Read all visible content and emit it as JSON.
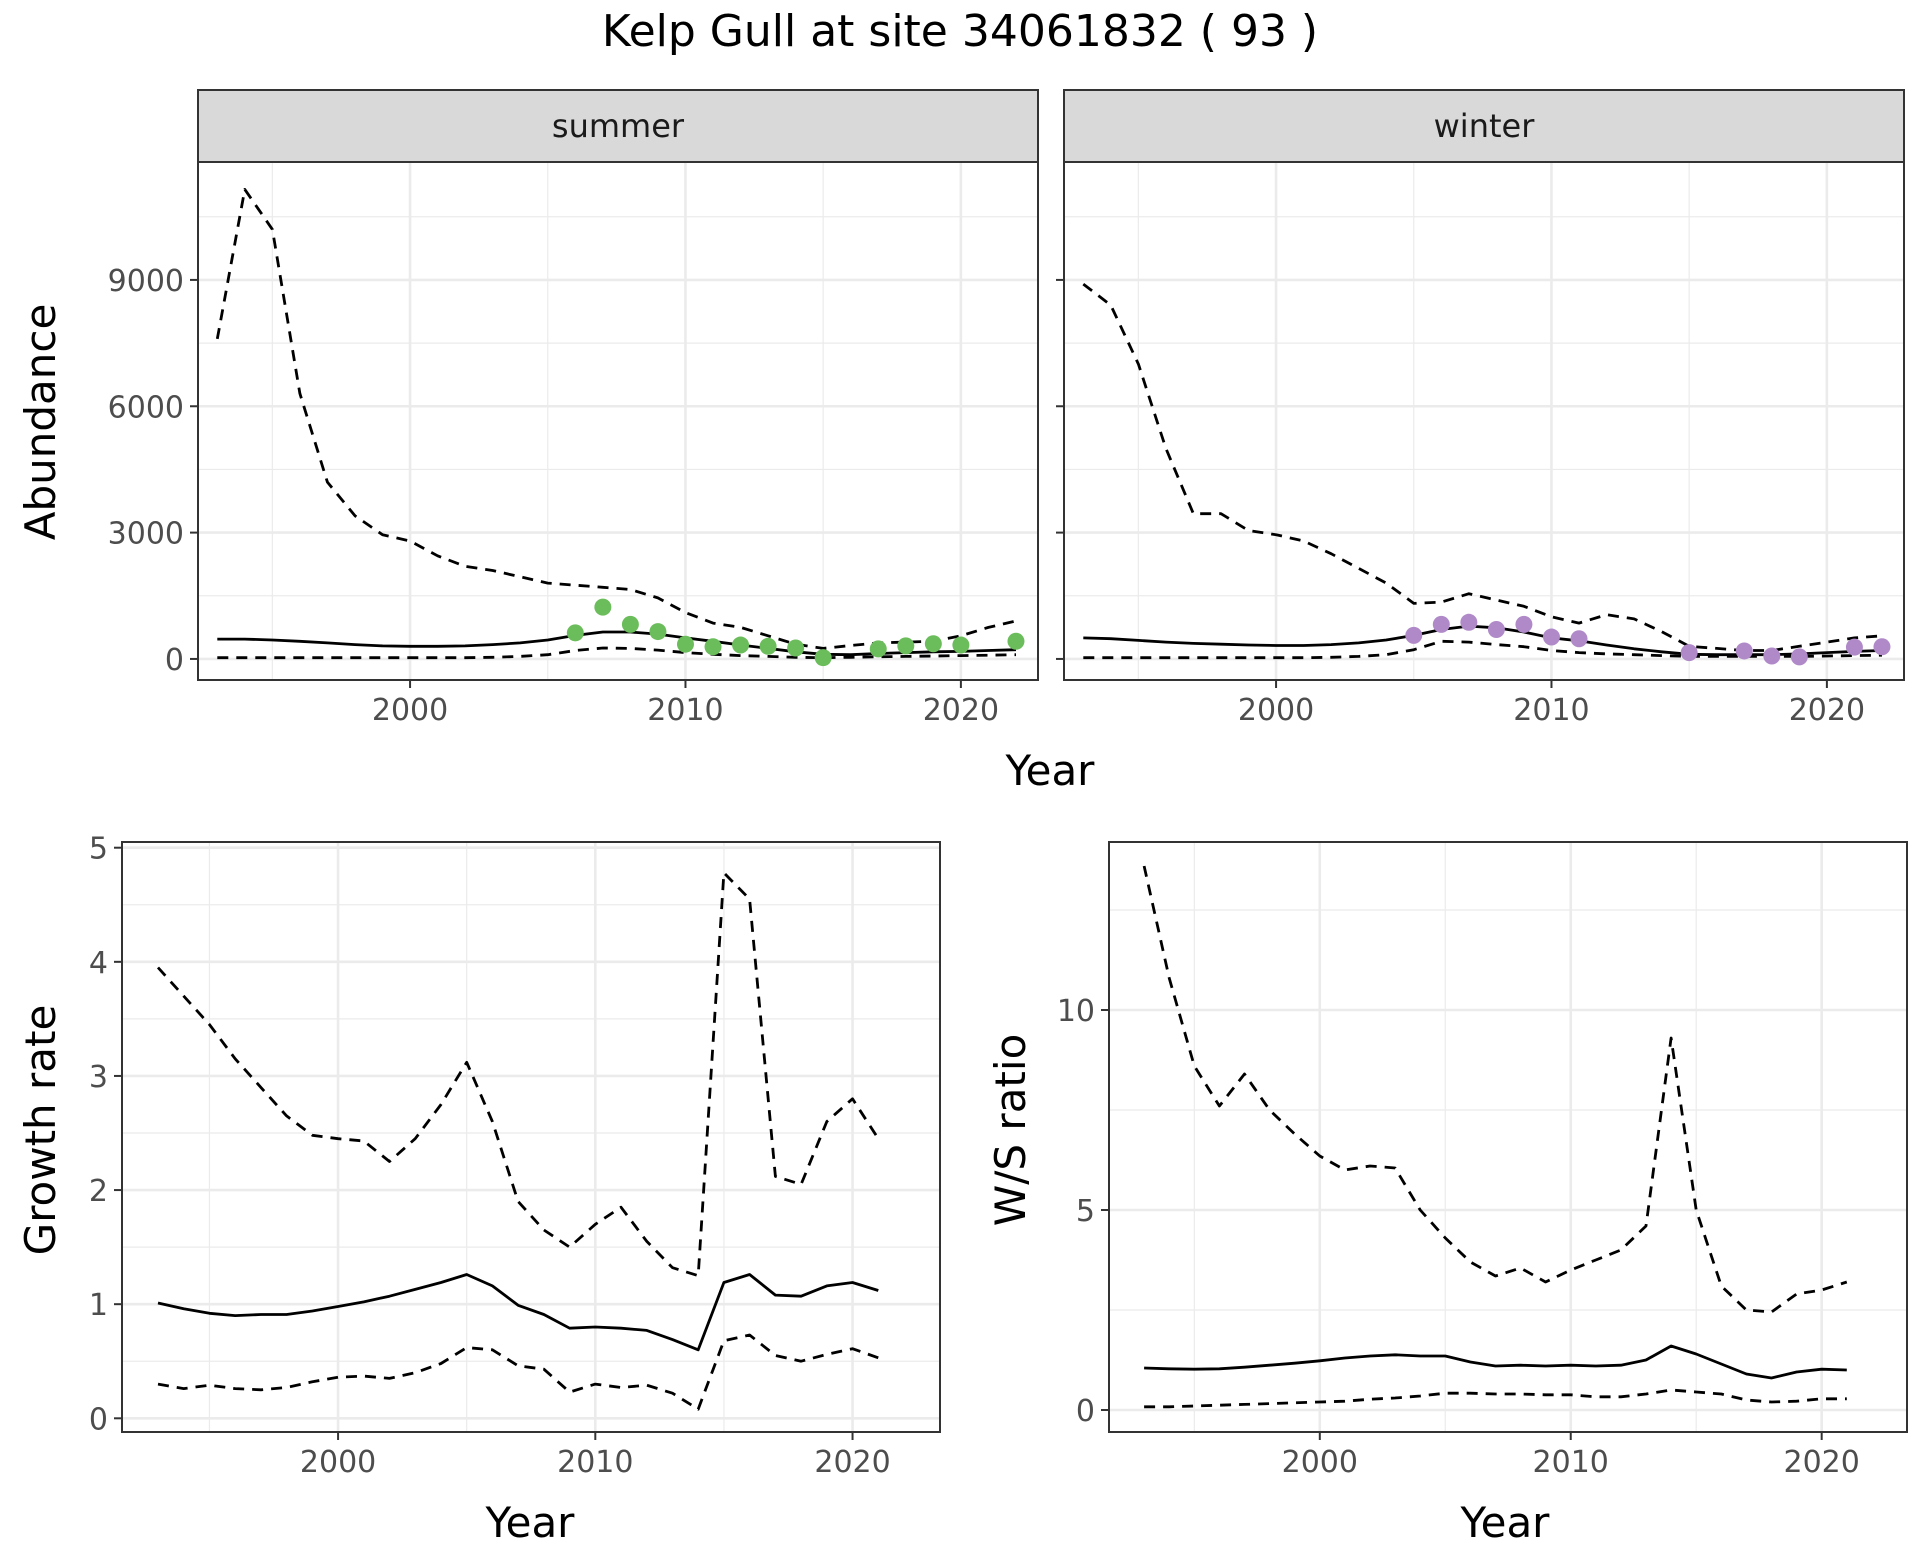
{
  "figure_title": "Kelp Gull at site 34061832 ( 93 )",
  "colors": {
    "summer_points": "#6bbd5b",
    "winter_points": "#b08ac8",
    "strip_bg": "#d9d9d9",
    "grid": "#ebebeb"
  },
  "chart_data": [
    {
      "type": "line",
      "id": "abundance-summer",
      "strip_label": "summer",
      "xlabel": "Year",
      "ylabel": "Abundance",
      "xlim": [
        1992.3,
        2022.8
      ],
      "ylim": [
        -500,
        11800
      ],
      "x_ticks": [
        2000,
        2010,
        2020
      ],
      "y_ticks": [
        0,
        3000,
        6000,
        9000
      ],
      "x_tick_labels": [
        "2000",
        "2010",
        "2020"
      ],
      "y_tick_labels": [
        "0",
        "3000",
        "6000",
        "9000"
      ],
      "series": [
        {
          "name": "upper",
          "style": "dashed",
          "x": [
            1993,
            1994,
            1995,
            1996,
            1997,
            1998,
            1999,
            2000,
            2001,
            2002,
            2003,
            2004,
            2005,
            2006,
            2007,
            2008,
            2009,
            2010,
            2011,
            2012,
            2013,
            2014,
            2015,
            2016,
            2017,
            2018,
            2019,
            2020,
            2021,
            2022
          ],
          "y": [
            7600,
            11150,
            10200,
            6300,
            4200,
            3400,
            2950,
            2800,
            2450,
            2200,
            2100,
            1950,
            1800,
            1750,
            1700,
            1650,
            1450,
            1100,
            850,
            750,
            550,
            350,
            250,
            320,
            380,
            400,
            420,
            550,
            750,
            900
          ]
        },
        {
          "name": "estimate",
          "style": "solid",
          "x": [
            1993,
            1994,
            1995,
            1996,
            1997,
            1998,
            1999,
            2000,
            2001,
            2002,
            2003,
            2004,
            2005,
            2006,
            2007,
            2008,
            2009,
            2010,
            2011,
            2012,
            2013,
            2014,
            2015,
            2016,
            2017,
            2018,
            2019,
            2020,
            2021,
            2022
          ],
          "y": [
            470,
            470,
            450,
            420,
            380,
            340,
            310,
            300,
            300,
            310,
            340,
            380,
            450,
            560,
            640,
            640,
            590,
            500,
            420,
            330,
            250,
            170,
            110,
            100,
            130,
            150,
            170,
            180,
            200,
            220
          ]
        },
        {
          "name": "lower",
          "style": "dashed",
          "x": [
            1993,
            1994,
            1995,
            1996,
            1997,
            1998,
            1999,
            2000,
            2001,
            2002,
            2003,
            2004,
            2005,
            2006,
            2007,
            2008,
            2009,
            2010,
            2011,
            2012,
            2013,
            2014,
            2015,
            2016,
            2017,
            2018,
            2019,
            2020,
            2021,
            2022
          ],
          "y": [
            30,
            30,
            30,
            30,
            30,
            30,
            30,
            30,
            30,
            30,
            40,
            60,
            100,
            200,
            260,
            250,
            210,
            150,
            110,
            80,
            60,
            40,
            30,
            40,
            50,
            60,
            70,
            80,
            90,
            100
          ]
        }
      ],
      "points": {
        "name": "observed",
        "x": [
          2006,
          2007,
          2008,
          2009,
          2010,
          2011,
          2012,
          2013,
          2014,
          2015,
          2017,
          2018,
          2019,
          2020,
          2022
        ],
        "y": [
          620,
          1230,
          820,
          650,
          350,
          290,
          330,
          300,
          260,
          30,
          240,
          310,
          360,
          330,
          420
        ]
      }
    },
    {
      "type": "line",
      "id": "abundance-winter",
      "strip_label": "winter",
      "xlabel": "Year",
      "ylabel": "Abundance",
      "xlim": [
        1992.3,
        2022.8
      ],
      "ylim": [
        -500,
        11800
      ],
      "x_ticks": [
        2000,
        2010,
        2020
      ],
      "y_ticks": [
        0,
        3000,
        6000,
        9000
      ],
      "x_tick_labels": [
        "2000",
        "2010",
        "2020"
      ],
      "y_tick_labels": [],
      "series": [
        {
          "name": "upper",
          "style": "dashed",
          "x": [
            1993,
            1994,
            1995,
            1996,
            1997,
            1998,
            1999,
            2000,
            2001,
            2002,
            2003,
            2004,
            2005,
            2006,
            2007,
            2008,
            2009,
            2010,
            2011,
            2012,
            2013,
            2014,
            2015,
            2016,
            2017,
            2018,
            2019,
            2020,
            2021,
            2022
          ],
          "y": [
            8900,
            8400,
            7000,
            5000,
            3450,
            3450,
            3050,
            2950,
            2800,
            2500,
            2150,
            1800,
            1320,
            1350,
            1550,
            1400,
            1250,
            1000,
            850,
            1050,
            950,
            650,
            300,
            250,
            200,
            200,
            300,
            400,
            500,
            550
          ]
        },
        {
          "name": "estimate",
          "style": "solid",
          "x": [
            1993,
            1994,
            1995,
            1996,
            1997,
            1998,
            1999,
            2000,
            2001,
            2002,
            2003,
            2004,
            2005,
            2006,
            2007,
            2008,
            2009,
            2010,
            2011,
            2012,
            2013,
            2014,
            2015,
            2016,
            2017,
            2018,
            2019,
            2020,
            2021,
            2022
          ],
          "y": [
            500,
            480,
            440,
            400,
            370,
            350,
            330,
            320,
            320,
            340,
            380,
            450,
            560,
            700,
            780,
            740,
            640,
            500,
            430,
            330,
            240,
            170,
            110,
            100,
            100,
            100,
            120,
            150,
            180,
            200
          ]
        },
        {
          "name": "lower",
          "style": "dashed",
          "x": [
            1993,
            1994,
            1995,
            1996,
            1997,
            1998,
            1999,
            2000,
            2001,
            2002,
            2003,
            2004,
            2005,
            2006,
            2007,
            2008,
            2009,
            2010,
            2011,
            2012,
            2013,
            2014,
            2015,
            2016,
            2017,
            2018,
            2019,
            2020,
            2021,
            2022
          ],
          "y": [
            30,
            30,
            30,
            30,
            30,
            30,
            30,
            30,
            30,
            40,
            60,
            100,
            220,
            420,
            400,
            340,
            290,
            200,
            150,
            120,
            100,
            80,
            60,
            60,
            60,
            60,
            60,
            70,
            80,
            90
          ]
        }
      ],
      "points": {
        "name": "observed",
        "x": [
          2005,
          2006,
          2007,
          2008,
          2009,
          2010,
          2011,
          2015,
          2017,
          2018,
          2019,
          2021,
          2022
        ],
        "y": [
          560,
          820,
          870,
          700,
          820,
          520,
          480,
          150,
          190,
          70,
          50,
          280,
          290
        ]
      }
    },
    {
      "type": "line",
      "id": "growth-rate",
      "xlabel": "Year",
      "ylabel": "Growth rate",
      "xlim": [
        1991.6,
        2023.4
      ],
      "ylim": [
        -0.12,
        5.05
      ],
      "x_ticks": [
        2000,
        2010,
        2020
      ],
      "y_ticks": [
        0,
        1,
        2,
        3,
        4,
        5
      ],
      "x_tick_labels": [
        "2000",
        "2010",
        "2020"
      ],
      "y_tick_labels": [
        "0",
        "1",
        "2",
        "3",
        "4",
        "5"
      ],
      "series": [
        {
          "name": "upper",
          "style": "dashed",
          "x": [
            1993,
            1994,
            1995,
            1996,
            1997,
            1998,
            1999,
            2000,
            2001,
            2002,
            2003,
            2004,
            2005,
            2006,
            2007,
            2008,
            2009,
            2010,
            2011,
            2012,
            2013,
            2014,
            2015,
            2016,
            2017,
            2018,
            2019,
            2020,
            2021
          ],
          "y": [
            3.95,
            3.7,
            3.45,
            3.15,
            2.9,
            2.65,
            2.48,
            2.45,
            2.43,
            2.25,
            2.45,
            2.75,
            3.12,
            2.6,
            1.9,
            1.65,
            1.5,
            1.7,
            1.85,
            1.55,
            1.32,
            1.25,
            4.78,
            4.55,
            2.12,
            2.05,
            2.6,
            2.8,
            2.45
          ]
        },
        {
          "name": "estimate",
          "style": "solid",
          "x": [
            1993,
            1994,
            1995,
            1996,
            1997,
            1998,
            1999,
            2000,
            2001,
            2002,
            2003,
            2004,
            2005,
            2006,
            2007,
            2008,
            2009,
            2010,
            2011,
            2012,
            2013,
            2014,
            2015,
            2016,
            2017,
            2018,
            2019,
            2020,
            2021
          ],
          "y": [
            1.01,
            0.96,
            0.92,
            0.9,
            0.91,
            0.91,
            0.94,
            0.98,
            1.02,
            1.07,
            1.13,
            1.19,
            1.26,
            1.16,
            0.99,
            0.91,
            0.79,
            0.8,
            0.79,
            0.77,
            0.69,
            0.6,
            1.19,
            1.26,
            1.08,
            1.07,
            1.16,
            1.19,
            1.12
          ]
        },
        {
          "name": "lower",
          "style": "dashed",
          "x": [
            1993,
            1994,
            1995,
            1996,
            1997,
            1998,
            1999,
            2000,
            2001,
            2002,
            2003,
            2004,
            2005,
            2006,
            2007,
            2008,
            2009,
            2010,
            2011,
            2012,
            2013,
            2014,
            2015,
            2016,
            2017,
            2018,
            2019,
            2020,
            2021
          ],
          "y": [
            0.3,
            0.26,
            0.29,
            0.26,
            0.25,
            0.27,
            0.32,
            0.36,
            0.37,
            0.35,
            0.4,
            0.48,
            0.62,
            0.6,
            0.46,
            0.43,
            0.23,
            0.3,
            0.27,
            0.29,
            0.22,
            0.08,
            0.68,
            0.73,
            0.55,
            0.5,
            0.56,
            0.61,
            0.53
          ]
        }
      ]
    },
    {
      "type": "line",
      "id": "ws-ratio",
      "xlabel": "Year",
      "ylabel": "W/S ratio",
      "xlim": [
        1991.6,
        2023.4
      ],
      "ylim": [
        -0.55,
        14.2
      ],
      "x_ticks": [
        2000,
        2010,
        2020
      ],
      "y_ticks": [
        0,
        5,
        10
      ],
      "x_tick_labels": [
        "2000",
        "2010",
        "2020"
      ],
      "y_tick_labels": [
        "0",
        "5",
        "10"
      ],
      "series": [
        {
          "name": "upper",
          "style": "dashed",
          "x": [
            1993,
            1994,
            1995,
            1996,
            1997,
            1998,
            1999,
            2000,
            2001,
            2002,
            2003,
            2004,
            2005,
            2006,
            2007,
            2008,
            2009,
            2010,
            2011,
            2012,
            2013,
            2014,
            2015,
            2016,
            2017,
            2018,
            2019,
            2020,
            2021
          ],
          "y": [
            13.6,
            10.8,
            8.6,
            7.6,
            8.4,
            7.5,
            6.9,
            6.35,
            6.0,
            6.1,
            6.05,
            5.0,
            4.3,
            3.7,
            3.35,
            3.55,
            3.2,
            3.5,
            3.75,
            4.0,
            4.6,
            9.3,
            5.0,
            3.1,
            2.5,
            2.45,
            2.9,
            3.0,
            3.2
          ]
        },
        {
          "name": "estimate",
          "style": "solid",
          "x": [
            1993,
            1994,
            1995,
            1996,
            1997,
            1998,
            1999,
            2000,
            2001,
            2002,
            2003,
            2004,
            2005,
            2006,
            2007,
            2008,
            2009,
            2010,
            2011,
            2012,
            2013,
            2014,
            2015,
            2016,
            2017,
            2018,
            2019,
            2020,
            2021
          ],
          "y": [
            1.05,
            1.03,
            1.02,
            1.03,
            1.07,
            1.12,
            1.17,
            1.23,
            1.3,
            1.35,
            1.38,
            1.35,
            1.35,
            1.2,
            1.1,
            1.12,
            1.1,
            1.12,
            1.1,
            1.12,
            1.25,
            1.6,
            1.4,
            1.15,
            0.9,
            0.8,
            0.95,
            1.02,
            1.0
          ]
        },
        {
          "name": "lower",
          "style": "dashed",
          "x": [
            1993,
            1994,
            1995,
            1996,
            1997,
            1998,
            1999,
            2000,
            2001,
            2002,
            2003,
            2004,
            2005,
            2006,
            2007,
            2008,
            2009,
            2010,
            2011,
            2012,
            2013,
            2014,
            2015,
            2016,
            2017,
            2018,
            2019,
            2020,
            2021
          ],
          "y": [
            0.08,
            0.08,
            0.1,
            0.12,
            0.14,
            0.16,
            0.18,
            0.2,
            0.22,
            0.27,
            0.3,
            0.35,
            0.42,
            0.42,
            0.4,
            0.4,
            0.38,
            0.38,
            0.33,
            0.33,
            0.4,
            0.5,
            0.45,
            0.4,
            0.25,
            0.2,
            0.22,
            0.28,
            0.28
          ]
        }
      ]
    }
  ]
}
